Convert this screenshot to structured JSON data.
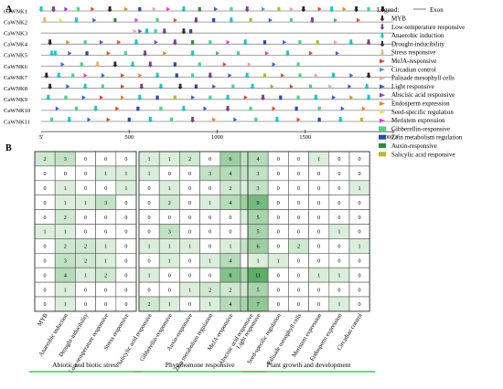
{
  "panel_a": {
    "label": "A",
    "genes": [
      "CaWNK1",
      "CaWNK2",
      "CaWNK3",
      "CaWNK4",
      "CaWNK5",
      "CaWNK6",
      "CaWNK7",
      "CaWNK8",
      "CaWNK9",
      "CaWNK10",
      "CaWNK11"
    ],
    "scale_ticks": [
      "5'",
      "500",
      "1000",
      "1500",
      "2000",
      "3'"
    ],
    "scale_values": [
      0,
      500,
      1000,
      1500,
      2000,
      2000
    ],
    "legend_title": "Legend:",
    "legend_exon": "Exon",
    "elements": [
      {
        "name": "MYB",
        "color": "#3b1f1f",
        "shape": "arrow"
      },
      {
        "name": "Low-temperature responsive",
        "color": "#7a3e8e",
        "shape": "arrow"
      },
      {
        "name": "Anaerobic induction",
        "color": "#17c6c6",
        "shape": "arrow"
      },
      {
        "name": "Drought-inducibility",
        "color": "#2a2a2a",
        "shape": "arrow"
      },
      {
        "name": "Stress responsive",
        "color": "#f0b070",
        "shape": "arrow"
      },
      {
        "name": "MeJA-responsive",
        "color": "#e04a2a",
        "shape": "flag"
      },
      {
        "name": "Circadian control",
        "color": "#4aa0c8",
        "shape": "flag"
      },
      {
        "name": "Palisade mesophyll cells",
        "color": "#f4a0a0",
        "shape": "flag"
      },
      {
        "name": "Light responsive",
        "color": "#3a5fd0",
        "shape": "flag"
      },
      {
        "name": "Abscisic acid responsive",
        "color": "#8a3fc0",
        "shape": "flag"
      },
      {
        "name": "Endosperm expression",
        "color": "#e08a20",
        "shape": "flag"
      },
      {
        "name": "Seed-specific regulation",
        "color": "#f2e24a",
        "shape": "flag"
      },
      {
        "name": "Meristem expression",
        "color": "#e83ad0",
        "shape": "flag"
      },
      {
        "name": "Gibberellin-responsive",
        "color": "#4ed28a",
        "shape": "box"
      },
      {
        "name": "Zein metabolism regulation",
        "color": "#2a4aa8",
        "shape": "box"
      },
      {
        "name": "Auxin-responsive",
        "color": "#2e8b3a",
        "shape": "box"
      },
      {
        "name": "Salicylic acid responsive",
        "color": "#b8b830",
        "shape": "box"
      }
    ],
    "marks": [
      [
        [
          0,
          "c"
        ],
        [
          70,
          "b"
        ],
        [
          140,
          "j"
        ],
        [
          210,
          "n"
        ],
        [
          290,
          "f"
        ],
        [
          390,
          "a"
        ],
        [
          480,
          "k"
        ],
        [
          560,
          "o"
        ],
        [
          640,
          "h"
        ],
        [
          720,
          "m"
        ],
        [
          810,
          "c"
        ],
        [
          900,
          "p"
        ],
        [
          990,
          "i"
        ],
        [
          1080,
          "n"
        ],
        [
          1170,
          "b"
        ],
        [
          1260,
          "g"
        ],
        [
          1350,
          "q"
        ],
        [
          1420,
          "h"
        ],
        [
          1490,
          "a"
        ],
        [
          1580,
          "f"
        ],
        [
          1650,
          "c"
        ],
        [
          1720,
          "k"
        ],
        [
          1790,
          "d"
        ],
        [
          1860,
          "n"
        ],
        [
          1940,
          "a"
        ]
      ],
      [
        [
          20,
          "e"
        ],
        [
          110,
          "l"
        ],
        [
          200,
          "c"
        ],
        [
          300,
          "i"
        ],
        [
          420,
          "p"
        ],
        [
          540,
          "m"
        ],
        [
          660,
          "n"
        ],
        [
          760,
          "f"
        ],
        [
          880,
          "b"
        ],
        [
          980,
          "o"
        ],
        [
          1080,
          "c"
        ],
        [
          1190,
          "q"
        ],
        [
          1300,
          "i"
        ],
        [
          1420,
          "n"
        ],
        [
          1540,
          "b"
        ],
        [
          1670,
          "g"
        ],
        [
          1800,
          "f"
        ]
      ],
      [
        [
          530,
          "h"
        ],
        [
          560,
          "i"
        ],
        [
          600,
          "c"
        ],
        [
          650,
          "n"
        ],
        [
          700,
          "b"
        ],
        [
          810,
          "d"
        ],
        [
          850,
          "o"
        ]
      ],
      [
        [
          50,
          "a"
        ],
        [
          150,
          "k"
        ],
        [
          250,
          "n"
        ],
        [
          340,
          "i"
        ],
        [
          440,
          "f"
        ],
        [
          540,
          "c"
        ],
        [
          650,
          "j"
        ],
        [
          760,
          "b"
        ],
        [
          860,
          "p"
        ],
        [
          960,
          "n"
        ],
        [
          1060,
          "m"
        ],
        [
          1160,
          "c"
        ],
        [
          1270,
          "o"
        ],
        [
          1380,
          "i"
        ],
        [
          1470,
          "n"
        ],
        [
          1570,
          "q"
        ],
        [
          1670,
          "h"
        ],
        [
          1760,
          "c"
        ],
        [
          1860,
          "b"
        ]
      ],
      [
        [
          60,
          "c"
        ],
        [
          80,
          "c"
        ],
        [
          160,
          "i"
        ],
        [
          260,
          "o"
        ],
        [
          380,
          "f"
        ],
        [
          480,
          "n"
        ],
        [
          590,
          "b"
        ],
        [
          700,
          "k"
        ],
        [
          860,
          "c"
        ],
        [
          1000,
          "g"
        ],
        [
          1120,
          "n"
        ],
        [
          1280,
          "m"
        ],
        [
          1400,
          "c"
        ],
        [
          1530,
          "f"
        ],
        [
          1680,
          "i"
        ]
      ],
      [
        [
          120,
          "i"
        ],
        [
          230,
          "n"
        ],
        [
          320,
          "e"
        ],
        [
          420,
          "d"
        ],
        [
          520,
          "c"
        ],
        [
          620,
          "b"
        ],
        [
          760,
          "o"
        ],
        [
          900,
          "n"
        ],
        [
          1040,
          "f"
        ],
        [
          1180,
          "h"
        ],
        [
          1320,
          "i"
        ],
        [
          1460,
          "n"
        ]
      ],
      [
        [
          30,
          "a"
        ],
        [
          100,
          "c"
        ],
        [
          180,
          "n"
        ],
        [
          250,
          "m"
        ],
        [
          350,
          "i"
        ],
        [
          460,
          "f"
        ],
        [
          560,
          "k"
        ],
        [
          660,
          "c"
        ],
        [
          770,
          "o"
        ],
        [
          860,
          "n"
        ],
        [
          960,
          "b"
        ],
        [
          1070,
          "i"
        ],
        [
          1170,
          "c"
        ],
        [
          1270,
          "q"
        ],
        [
          1370,
          "f"
        ],
        [
          1470,
          "n"
        ],
        [
          1560,
          "h"
        ],
        [
          1660,
          "c"
        ],
        [
          1760,
          "i"
        ],
        [
          1860,
          "a"
        ]
      ],
      [
        [
          50,
          "d"
        ],
        [
          150,
          "i"
        ],
        [
          250,
          "c"
        ],
        [
          350,
          "n"
        ],
        [
          460,
          "f"
        ],
        [
          570,
          "b"
        ],
        [
          680,
          "c"
        ],
        [
          790,
          "d"
        ],
        [
          880,
          "o"
        ],
        [
          980,
          "i"
        ],
        [
          1090,
          "n"
        ],
        [
          1200,
          "c"
        ],
        [
          1310,
          "k"
        ],
        [
          1420,
          "f"
        ],
        [
          1530,
          "n"
        ],
        [
          1640,
          "h"
        ],
        [
          1750,
          "i"
        ],
        [
          1850,
          "c"
        ]
      ],
      [
        [
          40,
          "c"
        ],
        [
          140,
          "n"
        ],
        [
          240,
          "i"
        ],
        [
          340,
          "f"
        ],
        [
          460,
          "k"
        ],
        [
          560,
          "c"
        ],
        [
          660,
          "o"
        ],
        [
          760,
          "q"
        ],
        [
          860,
          "i"
        ],
        [
          960,
          "n"
        ],
        [
          1060,
          "c"
        ],
        [
          1160,
          "f"
        ],
        [
          1260,
          "b"
        ],
        [
          1360,
          "o"
        ],
        [
          1460,
          "n"
        ],
        [
          1560,
          "c"
        ],
        [
          1660,
          "i"
        ],
        [
          1760,
          "k"
        ],
        [
          1860,
          "c"
        ]
      ],
      [
        [
          90,
          "i"
        ],
        [
          200,
          "n"
        ],
        [
          310,
          "c"
        ],
        [
          430,
          "f"
        ],
        [
          550,
          "o"
        ],
        [
          680,
          "n"
        ],
        [
          810,
          "c"
        ],
        [
          930,
          "i"
        ],
        [
          1060,
          "b"
        ],
        [
          1190,
          "n"
        ],
        [
          1320,
          "f"
        ],
        [
          1450,
          "o"
        ],
        [
          1580,
          "n"
        ],
        [
          1710,
          "i"
        ],
        [
          1830,
          "k"
        ]
      ],
      [
        [
          60,
          "n"
        ],
        [
          160,
          "c"
        ],
        [
          270,
          "i"
        ],
        [
          380,
          "f"
        ],
        [
          500,
          "o"
        ],
        [
          620,
          "c"
        ],
        [
          740,
          "n"
        ],
        [
          860,
          "b"
        ],
        [
          980,
          "k"
        ],
        [
          1100,
          "i"
        ],
        [
          1220,
          "n"
        ],
        [
          1340,
          "c"
        ],
        [
          1460,
          "f"
        ],
        [
          1580,
          "o"
        ],
        [
          1700,
          "c"
        ],
        [
          1820,
          "q"
        ]
      ]
    ]
  },
  "panel_b": {
    "label": "B",
    "groups": [
      {
        "category": "Abiotic and biotic  stress",
        "columns": [
          "MYB",
          "Anaerobic induction",
          "Drought-inducibility",
          "Low-temperature responsive",
          "Stress responsive"
        ],
        "rows": [
          [
            2,
            3,
            0,
            0,
            0
          ],
          [
            0,
            0,
            0,
            1,
            1
          ],
          [
            0,
            1,
            0,
            0,
            1
          ],
          [
            0,
            1,
            1,
            3,
            0
          ],
          [
            0,
            2,
            0,
            0,
            0
          ],
          [
            1,
            1,
            0,
            0,
            0
          ],
          [
            0,
            2,
            2,
            1,
            0
          ],
          [
            0,
            3,
            2,
            1,
            0
          ],
          [
            0,
            4,
            1,
            2,
            0
          ],
          [
            0,
            1,
            0,
            0,
            0
          ],
          [
            0,
            1,
            0,
            0,
            0
          ]
        ]
      },
      {
        "category": "Phytohomone responsive",
        "columns": [
          "Salicylic acid responsive",
          "Gibberellin-responsive",
          "Auxin-responsive",
          "Zein metabolism regulation",
          "MeJA-responsive",
          "Abscisic acid responsive"
        ],
        "rows": [
          [
            1,
            1,
            2,
            0,
            6,
            3
          ],
          [
            1,
            0,
            0,
            3,
            4,
            3
          ],
          [
            0,
            1,
            0,
            0,
            2,
            1
          ],
          [
            0,
            2,
            0,
            1,
            4,
            6
          ],
          [
            0,
            0,
            0,
            0,
            0,
            1
          ],
          [
            0,
            3,
            0,
            0,
            0,
            0
          ],
          [
            1,
            1,
            1,
            0,
            1,
            3
          ],
          [
            0,
            1,
            0,
            1,
            4,
            0
          ],
          [
            1,
            0,
            0,
            0,
            8,
            5
          ],
          [
            0,
            0,
            1,
            2,
            2,
            2
          ],
          [
            2,
            1,
            0,
            1,
            4,
            5
          ]
        ]
      },
      {
        "category": "Plant  growth and development",
        "columns": [
          "Light responsive",
          "Seed-specific regulation",
          "Palisade mesophyll cells",
          "Meristem expression",
          "Endosperm expression",
          "Circadian control"
        ],
        "rows": [
          [
            4,
            0,
            0,
            1,
            0,
            0
          ],
          [
            3,
            0,
            0,
            0,
            0,
            0
          ],
          [
            3,
            0,
            0,
            0,
            0,
            1
          ],
          [
            9,
            0,
            0,
            0,
            0,
            0
          ],
          [
            5,
            0,
            0,
            0,
            0,
            0
          ],
          [
            5,
            0,
            0,
            0,
            1,
            0
          ],
          [
            6,
            0,
            2,
            0,
            0,
            1
          ],
          [
            1,
            1,
            0,
            0,
            0,
            0
          ],
          [
            11,
            0,
            0,
            1,
            1,
            0
          ],
          [
            5,
            0,
            0,
            0,
            0,
            0
          ],
          [
            7,
            0,
            0,
            0,
            1,
            0
          ]
        ]
      }
    ]
  }
}
